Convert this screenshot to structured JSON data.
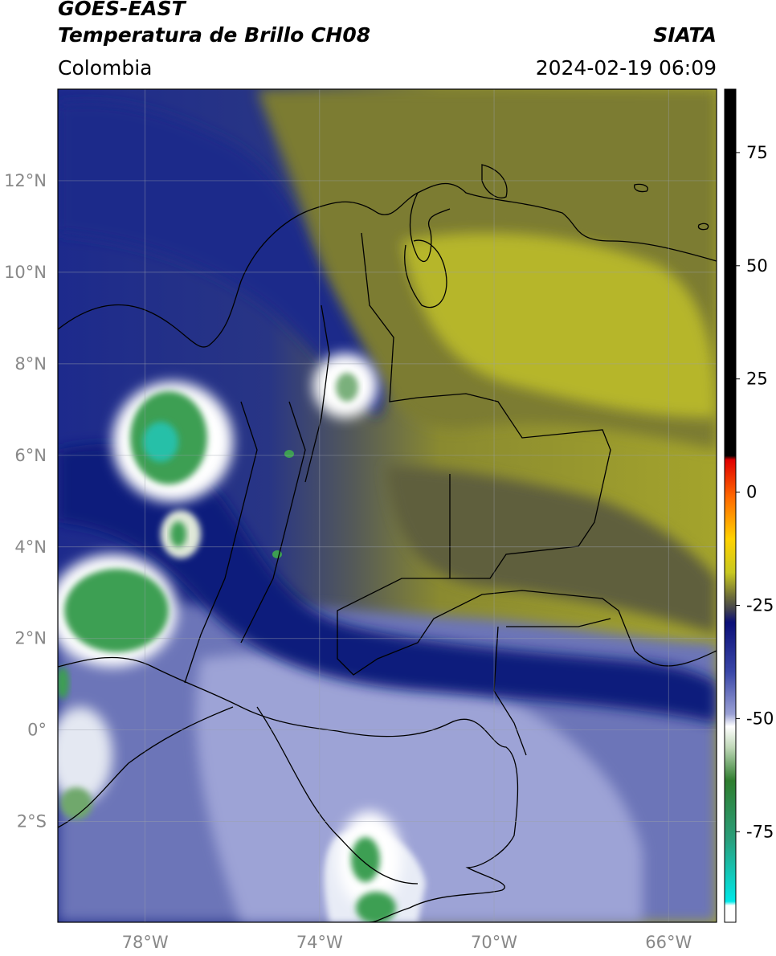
{
  "header": {
    "satellite": "GOES-EAST",
    "product": "Temperatura de Brillo CH08",
    "organization": "SIATA",
    "region": "Colombia",
    "datetime": "2024-02-19 06:09"
  },
  "map": {
    "lon_range": [
      -80,
      -64.9
    ],
    "lat_range": [
      -4.2,
      14
    ],
    "lat_ticks": [
      {
        "value": 12,
        "label": "12°N"
      },
      {
        "value": 10,
        "label": "10°N"
      },
      {
        "value": 8,
        "label": "8°N"
      },
      {
        "value": 6,
        "label": "6°N"
      },
      {
        "value": 4,
        "label": "4°N"
      },
      {
        "value": 2,
        "label": "2°N"
      },
      {
        "value": 0,
        "label": "0°"
      },
      {
        "value": -2,
        "label": "2°S"
      }
    ],
    "lon_ticks": [
      {
        "value": -78,
        "label": "78°W"
      },
      {
        "value": -74,
        "label": "74°W"
      },
      {
        "value": -70,
        "label": "70°W"
      },
      {
        "value": -66,
        "label": "66°W"
      }
    ],
    "gridlines": true
  },
  "colorbar": {
    "range": [
      -95,
      89
    ],
    "tick_labels": [
      {
        "value": 75,
        "label": "75"
      },
      {
        "value": 50,
        "label": "50"
      },
      {
        "value": 25,
        "label": "25"
      },
      {
        "value": 0,
        "label": "0"
      },
      {
        "value": -25,
        "label": "-25"
      },
      {
        "value": -50,
        "label": "-50"
      },
      {
        "value": -75,
        "label": "-75"
      }
    ]
  },
  "colors": {
    "warm_yellow": "#b8b82a",
    "olive": "#77773a",
    "navy": "#121e7e",
    "lavender": "#8c93c8",
    "white": "#ffffff",
    "green": "#3d9f52",
    "cyan": "#28c0a8",
    "coastline": "#000000"
  }
}
